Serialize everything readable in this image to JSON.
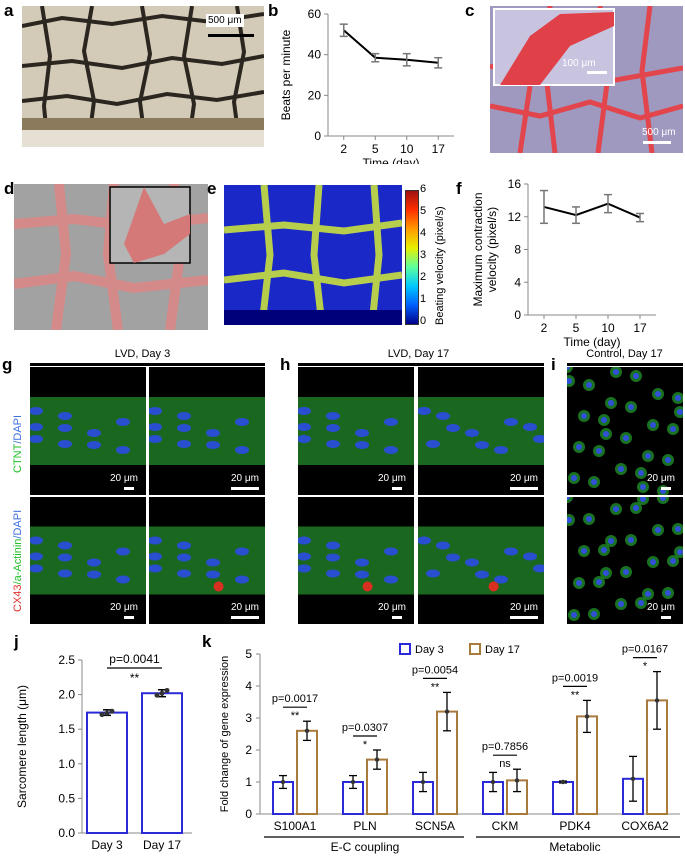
{
  "panels": {
    "a": {
      "label": "a",
      "scale": "500 μm"
    },
    "b": {
      "label": "b"
    },
    "c": {
      "label": "c",
      "scale_inset": "100 μm",
      "scale_main": "500 μm"
    },
    "d": {
      "label": "d"
    },
    "e": {
      "label": "e",
      "colorbar_label": "Beating velocity (pixel/s)",
      "colorbar_ticks": [
        "6",
        "5",
        "4",
        "3",
        "2",
        "1",
        "0"
      ]
    },
    "f": {
      "label": "f"
    },
    "g": {
      "label": "g",
      "header": "LVD, Day 3"
    },
    "h": {
      "label": "h",
      "header": "LVD, Day 17"
    },
    "i": {
      "label": "i",
      "header": "Control, Day 17"
    },
    "j": {
      "label": "j"
    },
    "k": {
      "label": "k"
    }
  },
  "stain_labels": {
    "row1": [
      "CTNT",
      "/DAPI"
    ],
    "row2": [
      "CX43",
      "/a-Actinin",
      "/DAPI"
    ],
    "row1_colors": [
      "#22c02a",
      "#3b6ee0"
    ],
    "row2_colors": [
      "#e03030",
      "#22c02a",
      "#3b6ee0"
    ]
  },
  "scalebar_20": "20 μm",
  "chart_data": [
    {
      "panel": "b",
      "type": "line",
      "x": [
        "2",
        "5",
        "10",
        "17"
      ],
      "values": [
        52,
        38.5,
        37.5,
        36
      ],
      "errors": [
        3,
        2,
        3,
        2.5
      ],
      "xlabel": "Time (day)",
      "ylabel": "Beats per minute",
      "ylim": [
        0,
        60
      ],
      "yticks": [
        "0",
        "20",
        "40",
        "60"
      ]
    },
    {
      "panel": "f",
      "type": "line",
      "x": [
        "2",
        "5",
        "10",
        "17"
      ],
      "values": [
        13.2,
        12.2,
        13.6,
        11.9
      ],
      "errors": [
        2.0,
        1.0,
        1.1,
        0.5
      ],
      "xlabel": "Time (day)",
      "ylabel": [
        "Maximum contraction",
        "velocity (pixel/s)"
      ],
      "ylim": [
        0,
        16
      ],
      "yticks": [
        "0",
        "4",
        "8",
        "12",
        "16"
      ]
    },
    {
      "panel": "j",
      "type": "bar",
      "categories": [
        "Day 3",
        "Day 17"
      ],
      "values": [
        1.74,
        2.02
      ],
      "errors": [
        0.04,
        0.05
      ],
      "points": [
        [
          1.71,
          1.73,
          1.76
        ],
        [
          1.99,
          2.02,
          2.06
        ]
      ],
      "ylabel": "Sarcomere length (μm)",
      "ylim": [
        0,
        2.5
      ],
      "yticks": [
        "0.0",
        "0.5",
        "1.0",
        "1.5",
        "2.0",
        "2.5"
      ],
      "pvalue": "p=0.0041",
      "sig": "**"
    },
    {
      "panel": "k",
      "type": "bar",
      "categories": [
        "S100A1",
        "PLN",
        "SCN5A",
        "CKM",
        "PDK4",
        "COX6A2"
      ],
      "series": [
        {
          "name": "Day 3",
          "values": [
            1.0,
            1.0,
            1.0,
            1.0,
            1.0,
            1.1
          ],
          "errors": [
            0.2,
            0.2,
            0.3,
            0.3,
            0.03,
            0.7
          ],
          "color": "#2a2ad8"
        },
        {
          "name": "Day 17",
          "values": [
            2.6,
            1.7,
            3.2,
            1.05,
            3.05,
            3.55
          ],
          "errors": [
            0.3,
            0.3,
            0.6,
            0.35,
            0.5,
            0.9
          ],
          "color": "#a87a3c"
        }
      ],
      "pvalues": [
        "p=0.0017",
        "p=0.0307",
        "p=0.0054",
        "p=0.7856",
        "p=0.0019",
        "p=0.0167"
      ],
      "sig": [
        "**",
        "*",
        "**",
        "ns",
        "**",
        "*"
      ],
      "ylabel": "Fold change of gene expression",
      "ylim": [
        0,
        5
      ],
      "yticks": [
        "0",
        "1",
        "2",
        "3",
        "4",
        "5"
      ],
      "groups": [
        "E-C coupling",
        "Metabolic"
      ]
    }
  ]
}
